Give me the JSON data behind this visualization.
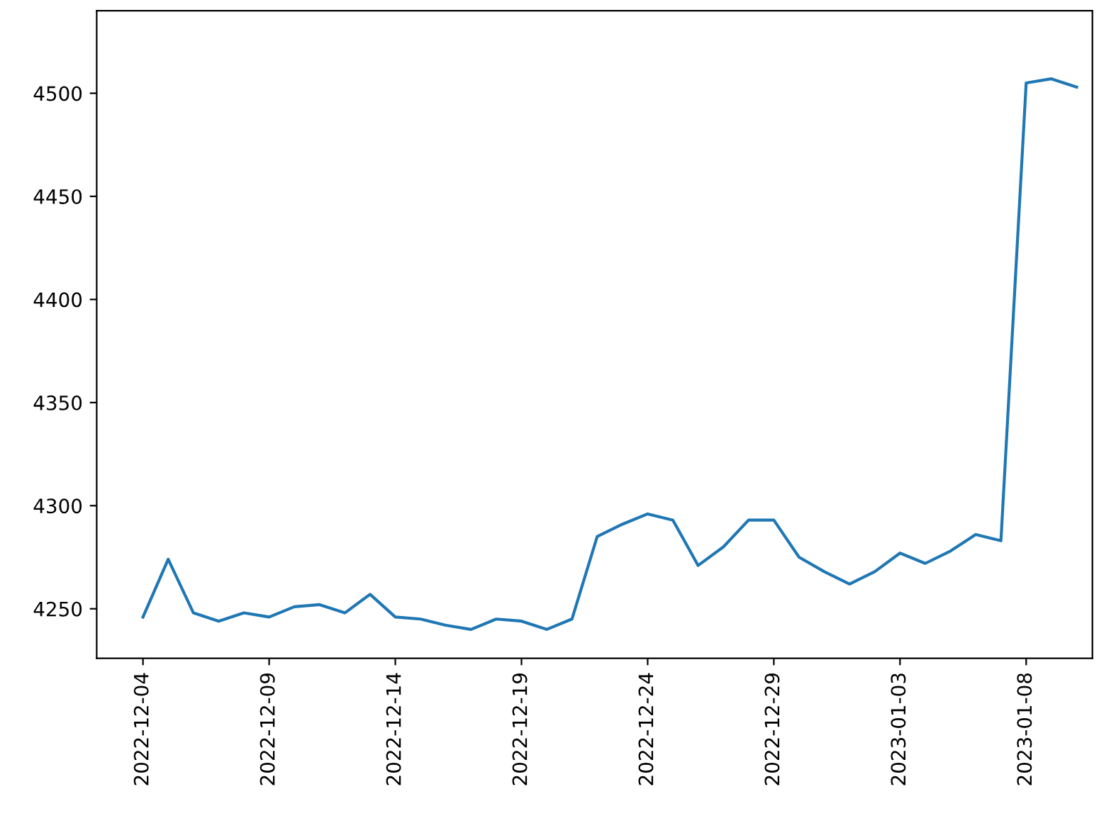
{
  "chart_data": {
    "type": "line",
    "x": [
      "2022-12-04",
      "2022-12-05",
      "2022-12-06",
      "2022-12-07",
      "2022-12-08",
      "2022-12-09",
      "2022-12-10",
      "2022-12-11",
      "2022-12-12",
      "2022-12-13",
      "2022-12-14",
      "2022-12-15",
      "2022-12-16",
      "2022-12-17",
      "2022-12-18",
      "2022-12-19",
      "2022-12-20",
      "2022-12-21",
      "2022-12-22",
      "2022-12-23",
      "2022-12-24",
      "2022-12-25",
      "2022-12-26",
      "2022-12-27",
      "2022-12-28",
      "2022-12-29",
      "2022-12-30",
      "2022-12-31",
      "2023-01-01",
      "2023-01-02",
      "2023-01-03",
      "2023-01-04",
      "2023-01-05",
      "2023-01-06",
      "2023-01-07",
      "2023-01-08",
      "2023-01-09",
      "2023-01-10"
    ],
    "series": [
      {
        "color": "#1f77b4",
        "values": [
          4246,
          4274,
          4248,
          4244,
          4248,
          4246,
          4251,
          4252,
          4248,
          4257,
          4246,
          4245,
          4242,
          4240,
          4245,
          4244,
          4240,
          4245,
          4285,
          4291,
          4296,
          4293,
          4271,
          4280,
          4293,
          4293,
          4275,
          4268,
          4262,
          4268,
          4277,
          4272,
          4278,
          4286,
          4283,
          4505,
          4507,
          4503
        ]
      }
    ],
    "xlim": [
      "2022-12-02T04:00",
      "2023-01-10T15:00"
    ],
    "xticks": [
      "2022-12-04",
      "2022-12-09",
      "2022-12-14",
      "2022-12-19",
      "2022-12-24",
      "2022-12-29",
      "2023-01-03",
      "2023-01-08"
    ],
    "ylim": [
      4226,
      4540
    ],
    "yticks": [
      4250,
      4300,
      4350,
      4400,
      4450,
      4500
    ],
    "grid": false
  }
}
